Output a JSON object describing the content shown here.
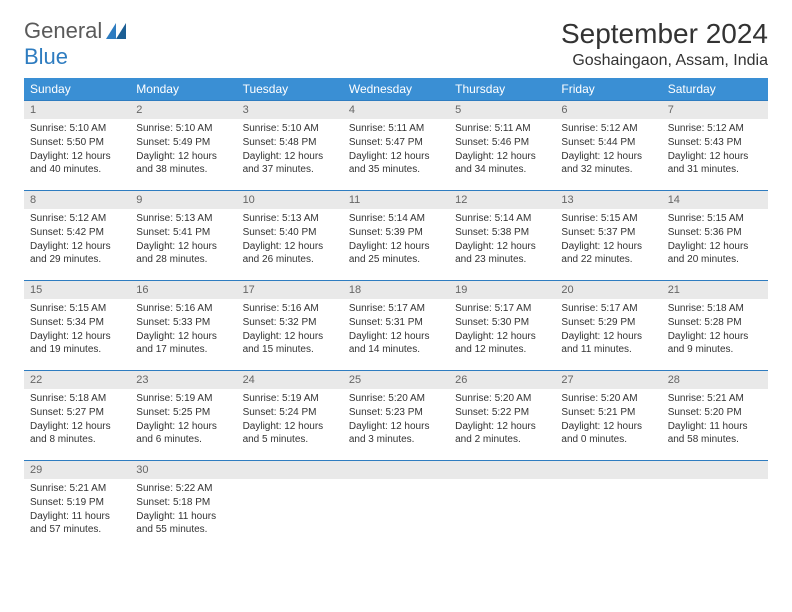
{
  "logo": {
    "text_a": "General",
    "text_b": "Blue"
  },
  "title": "September 2024",
  "location": "Goshaingaon, Assam, India",
  "colors": {
    "header_bg": "#3a8fd4",
    "rule": "#2e7cc0",
    "daynum_bg": "#e9e9e9",
    "text": "#333333"
  },
  "weekdays": [
    "Sunday",
    "Monday",
    "Tuesday",
    "Wednesday",
    "Thursday",
    "Friday",
    "Saturday"
  ],
  "weeks": [
    [
      {
        "n": "1",
        "sr": "5:10 AM",
        "ss": "5:50 PM",
        "dl": "12 hours and 40 minutes."
      },
      {
        "n": "2",
        "sr": "5:10 AM",
        "ss": "5:49 PM",
        "dl": "12 hours and 38 minutes."
      },
      {
        "n": "3",
        "sr": "5:10 AM",
        "ss": "5:48 PM",
        "dl": "12 hours and 37 minutes."
      },
      {
        "n": "4",
        "sr": "5:11 AM",
        "ss": "5:47 PM",
        "dl": "12 hours and 35 minutes."
      },
      {
        "n": "5",
        "sr": "5:11 AM",
        "ss": "5:46 PM",
        "dl": "12 hours and 34 minutes."
      },
      {
        "n": "6",
        "sr": "5:12 AM",
        "ss": "5:44 PM",
        "dl": "12 hours and 32 minutes."
      },
      {
        "n": "7",
        "sr": "5:12 AM",
        "ss": "5:43 PM",
        "dl": "12 hours and 31 minutes."
      }
    ],
    [
      {
        "n": "8",
        "sr": "5:12 AM",
        "ss": "5:42 PM",
        "dl": "12 hours and 29 minutes."
      },
      {
        "n": "9",
        "sr": "5:13 AM",
        "ss": "5:41 PM",
        "dl": "12 hours and 28 minutes."
      },
      {
        "n": "10",
        "sr": "5:13 AM",
        "ss": "5:40 PM",
        "dl": "12 hours and 26 minutes."
      },
      {
        "n": "11",
        "sr": "5:14 AM",
        "ss": "5:39 PM",
        "dl": "12 hours and 25 minutes."
      },
      {
        "n": "12",
        "sr": "5:14 AM",
        "ss": "5:38 PM",
        "dl": "12 hours and 23 minutes."
      },
      {
        "n": "13",
        "sr": "5:15 AM",
        "ss": "5:37 PM",
        "dl": "12 hours and 22 minutes."
      },
      {
        "n": "14",
        "sr": "5:15 AM",
        "ss": "5:36 PM",
        "dl": "12 hours and 20 minutes."
      }
    ],
    [
      {
        "n": "15",
        "sr": "5:15 AM",
        "ss": "5:34 PM",
        "dl": "12 hours and 19 minutes."
      },
      {
        "n": "16",
        "sr": "5:16 AM",
        "ss": "5:33 PM",
        "dl": "12 hours and 17 minutes."
      },
      {
        "n": "17",
        "sr": "5:16 AM",
        "ss": "5:32 PM",
        "dl": "12 hours and 15 minutes."
      },
      {
        "n": "18",
        "sr": "5:17 AM",
        "ss": "5:31 PM",
        "dl": "12 hours and 14 minutes."
      },
      {
        "n": "19",
        "sr": "5:17 AM",
        "ss": "5:30 PM",
        "dl": "12 hours and 12 minutes."
      },
      {
        "n": "20",
        "sr": "5:17 AM",
        "ss": "5:29 PM",
        "dl": "12 hours and 11 minutes."
      },
      {
        "n": "21",
        "sr": "5:18 AM",
        "ss": "5:28 PM",
        "dl": "12 hours and 9 minutes."
      }
    ],
    [
      {
        "n": "22",
        "sr": "5:18 AM",
        "ss": "5:27 PM",
        "dl": "12 hours and 8 minutes."
      },
      {
        "n": "23",
        "sr": "5:19 AM",
        "ss": "5:25 PM",
        "dl": "12 hours and 6 minutes."
      },
      {
        "n": "24",
        "sr": "5:19 AM",
        "ss": "5:24 PM",
        "dl": "12 hours and 5 minutes."
      },
      {
        "n": "25",
        "sr": "5:20 AM",
        "ss": "5:23 PM",
        "dl": "12 hours and 3 minutes."
      },
      {
        "n": "26",
        "sr": "5:20 AM",
        "ss": "5:22 PM",
        "dl": "12 hours and 2 minutes."
      },
      {
        "n": "27",
        "sr": "5:20 AM",
        "ss": "5:21 PM",
        "dl": "12 hours and 0 minutes."
      },
      {
        "n": "28",
        "sr": "5:21 AM",
        "ss": "5:20 PM",
        "dl": "11 hours and 58 minutes."
      }
    ],
    [
      {
        "n": "29",
        "sr": "5:21 AM",
        "ss": "5:19 PM",
        "dl": "11 hours and 57 minutes."
      },
      {
        "n": "30",
        "sr": "5:22 AM",
        "ss": "5:18 PM",
        "dl": "11 hours and 55 minutes."
      },
      null,
      null,
      null,
      null,
      null
    ]
  ],
  "labels": {
    "sunrise": "Sunrise:",
    "sunset": "Sunset:",
    "daylight": "Daylight:"
  }
}
